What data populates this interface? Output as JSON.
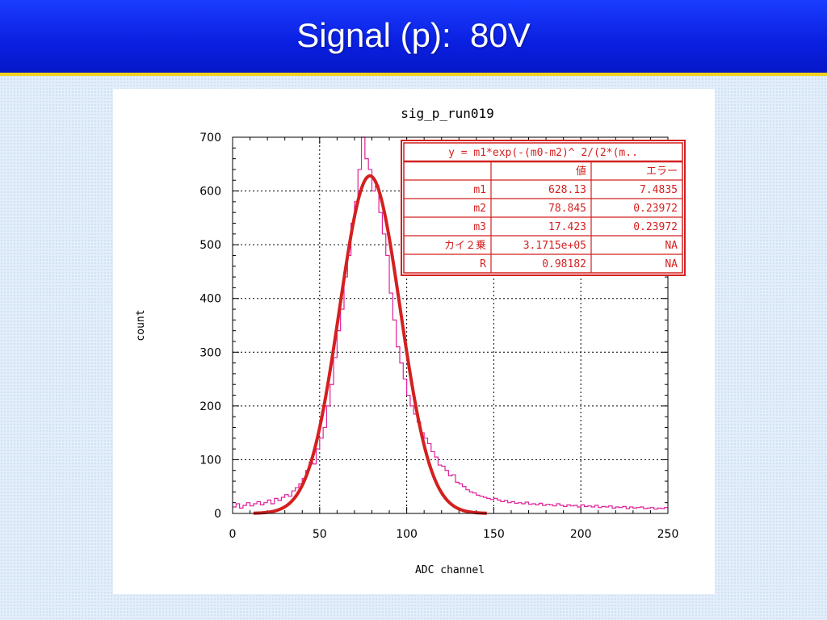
{
  "slide": {
    "title": "Signal (p):  80V"
  },
  "colors": {
    "histogram": "#e0209a",
    "fit": "#d42020",
    "table_border": "#d42020",
    "grid": "#000000"
  },
  "chart_data": {
    "type": "histogram",
    "title": "sig_p_run019",
    "xlabel": "ADC channel",
    "ylabel": "count",
    "xlim": [
      0,
      250
    ],
    "ylim": [
      0,
      700
    ],
    "xticks": [
      0,
      50,
      100,
      150,
      200,
      250
    ],
    "yticks": [
      0,
      100,
      200,
      300,
      400,
      500,
      600,
      700
    ],
    "grid": true,
    "series": [
      {
        "kind": "histogram",
        "bin_width": 2,
        "x": [
          0,
          2,
          4,
          6,
          8,
          10,
          12,
          14,
          16,
          18,
          20,
          22,
          24,
          26,
          28,
          30,
          32,
          34,
          36,
          38,
          40,
          42,
          44,
          46,
          48,
          50,
          52,
          54,
          56,
          58,
          60,
          62,
          64,
          66,
          68,
          70,
          72,
          74,
          76,
          78,
          80,
          82,
          84,
          86,
          88,
          90,
          92,
          94,
          96,
          98,
          100,
          102,
          104,
          106,
          108,
          110,
          112,
          114,
          116,
          118,
          120,
          122,
          124,
          126,
          128,
          130,
          132,
          134,
          136,
          138,
          140,
          142,
          144,
          146,
          148,
          150,
          152,
          154,
          156,
          158,
          160,
          162,
          164,
          166,
          168,
          170,
          172,
          174,
          176,
          178,
          180,
          182,
          184,
          186,
          188,
          190,
          192,
          194,
          196,
          198,
          200,
          202,
          204,
          206,
          208,
          210,
          212,
          214,
          216,
          218,
          220,
          222,
          224,
          226,
          228,
          230,
          232,
          234,
          236,
          238,
          240,
          242,
          244,
          246,
          248
        ],
        "values": [
          12,
          18,
          10,
          15,
          20,
          14,
          18,
          22,
          16,
          20,
          25,
          18,
          28,
          24,
          30,
          35,
          32,
          42,
          48,
          55,
          65,
          80,
          95,
          92,
          120,
          140,
          160,
          200,
          240,
          290,
          340,
          380,
          440,
          480,
          540,
          580,
          640,
          700,
          660,
          640,
          600,
          610,
          560,
          520,
          480,
          410,
          360,
          310,
          280,
          250,
          220,
          200,
          185,
          170,
          150,
          140,
          130,
          115,
          105,
          90,
          88,
          80,
          70,
          72,
          58,
          55,
          50,
          44,
          40,
          38,
          34,
          32,
          30,
          28,
          26,
          28,
          25,
          22,
          24,
          20,
          22,
          19,
          20,
          18,
          21,
          17,
          18,
          16,
          19,
          15,
          17,
          16,
          14,
          18,
          15,
          13,
          16,
          14,
          15,
          12,
          16,
          13,
          14,
          12,
          15,
          11,
          13,
          12,
          14,
          10,
          12,
          11,
          13,
          9,
          12,
          10,
          11,
          12,
          9,
          10,
          11,
          8,
          10,
          9,
          11
        ]
      },
      {
        "kind": "fit",
        "name": "y = m1*exp(-(m0-m2)^2/(2*(m..",
        "m1": 628.13,
        "m2": 78.845,
        "m3": 17.423,
        "x_range": [
          12,
          146
        ]
      }
    ],
    "fit_table": {
      "formula": "y = m1*exp(-(m0-m2)^ 2/(2*(m..",
      "headers": [
        "",
        "値",
        "エラー"
      ],
      "rows": [
        [
          "m1",
          "628.13",
          "7.4835"
        ],
        [
          "m2",
          "78.845",
          "0.23972"
        ],
        [
          "m3",
          "17.423",
          "0.23972"
        ],
        [
          "カイ２乗",
          "3.1715e+05",
          "NA"
        ],
        [
          "R",
          "0.98182",
          "NA"
        ]
      ],
      "placement": "top-right"
    }
  }
}
